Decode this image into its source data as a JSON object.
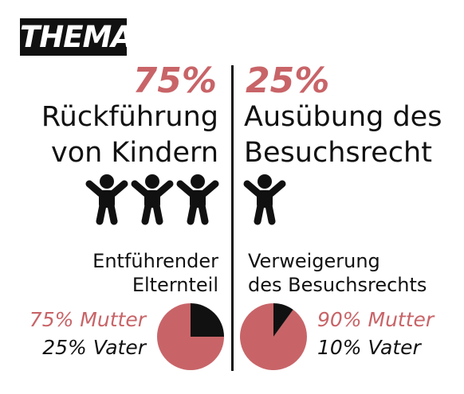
{
  "badge": {
    "text": "THEMA"
  },
  "colors": {
    "accent": "#c86468",
    "dark": "#111111"
  },
  "left": {
    "percent": "75%",
    "title_line1": "Rückführung",
    "title_line2": "von Kindern",
    "icon_count": 3,
    "sub_line1": "Entführender",
    "sub_line2": "Elternteil",
    "legend": [
      "75% Mutter",
      "25% Vater"
    ]
  },
  "right": {
    "percent": "25%",
    "title_line1": "Ausübung des",
    "title_line2": "Besuchsrecht",
    "icon_count": 1,
    "sub_line1": "Verweigerung",
    "sub_line2": "des Besuchsrechts",
    "legend": [
      "90% Mutter",
      "10% Vater"
    ]
  },
  "chart_data": [
    {
      "type": "bar",
      "categories": [
        "Rückführung von Kindern",
        "Ausübung des Besuchsrecht"
      ],
      "values": [
        75,
        25
      ]
    },
    {
      "type": "pie",
      "labels": [
        "Mutter",
        "Vater"
      ],
      "values": [
        75,
        25
      ],
      "colors": [
        "#c86468",
        "#111111"
      ]
    },
    {
      "type": "pie",
      "labels": [
        "Mutter",
        "Vater"
      ],
      "values": [
        90,
        10
      ],
      "colors": [
        "#c86468",
        "#111111"
      ]
    }
  ]
}
